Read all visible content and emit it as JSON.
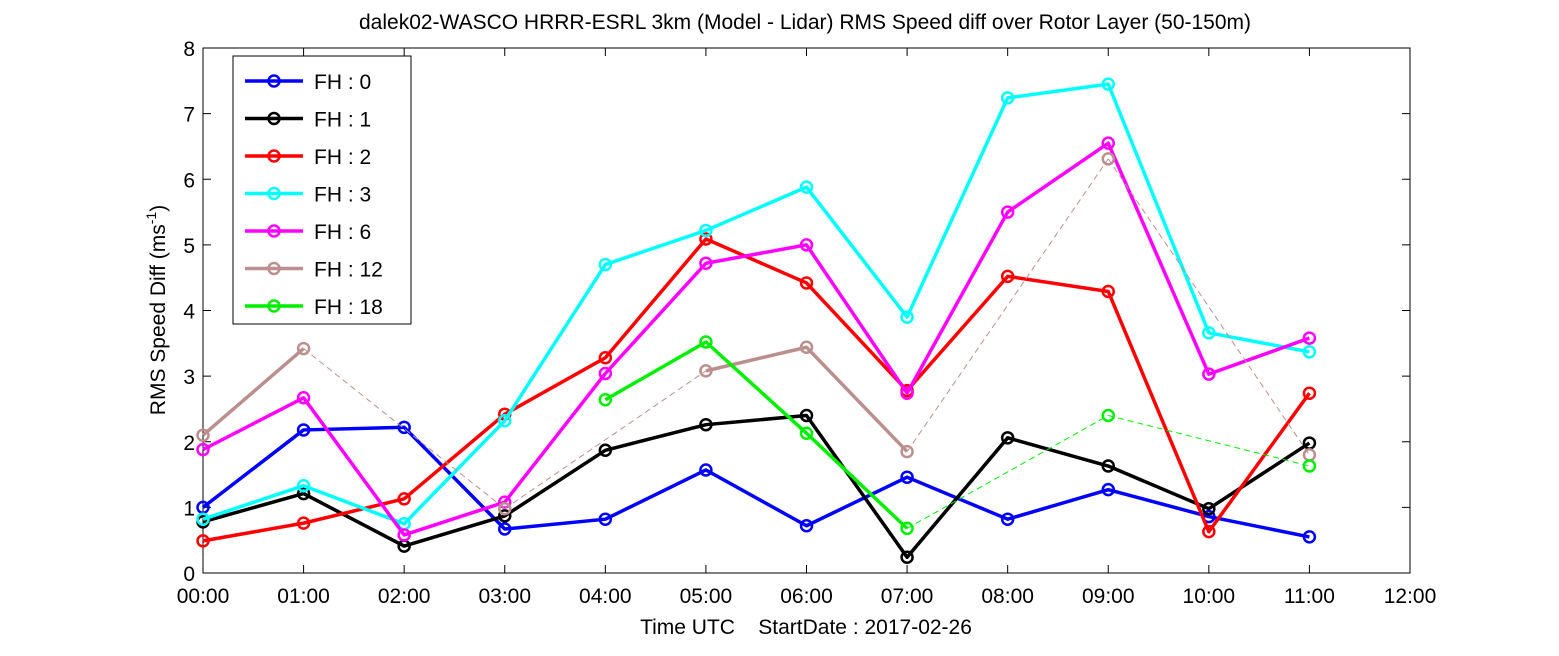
{
  "chart_data": {
    "type": "line",
    "title": "dalek02-WASCO HRRR-ESRL 3km (Model - Lidar) RMS Speed diff over Rotor Layer (50-150m)",
    "xlabel": "Time UTC    StartDate : 2017-02-26",
    "ylabel_base": "RMS Speed Diff (ms",
    "ylabel_sup": "-1",
    "ylabel_end": ")",
    "xlim": [
      "00:00",
      "12:00"
    ],
    "ylim": [
      0,
      8
    ],
    "x_ticks": [
      "00:00",
      "01:00",
      "02:00",
      "03:00",
      "04:00",
      "05:00",
      "06:00",
      "07:00",
      "08:00",
      "09:00",
      "10:00",
      "11:00",
      "12:00"
    ],
    "y_ticks": [
      "0",
      "1",
      "2",
      "3",
      "4",
      "5",
      "6",
      "7",
      "8"
    ],
    "legend_position": "top-left",
    "series": [
      {
        "name": "FH : 0",
        "color": "#0000ff",
        "values": [
          1.0,
          2.18,
          2.22,
          0.67,
          0.82,
          1.57,
          0.72,
          1.46,
          0.82,
          1.27,
          0.86,
          0.55
        ]
      },
      {
        "name": "FH : 1",
        "color": "#000000",
        "values": [
          0.78,
          1.21,
          0.41,
          0.87,
          1.87,
          2.26,
          2.4,
          0.24,
          2.06,
          1.63,
          0.98,
          1.98
        ]
      },
      {
        "name": "FH : 2",
        "color": "#ff0000",
        "values": [
          0.49,
          0.76,
          1.13,
          2.42,
          3.28,
          5.09,
          4.42,
          2.78,
          4.52,
          4.29,
          0.63,
          2.74
        ]
      },
      {
        "name": "FH : 3",
        "color": "#00ffff",
        "values": [
          0.82,
          1.33,
          0.75,
          2.32,
          4.7,
          5.22,
          5.88,
          3.9,
          7.24,
          7.45,
          3.66,
          3.37
        ]
      },
      {
        "name": "FH : 6",
        "color": "#ff00ff",
        "values": [
          1.88,
          2.67,
          0.58,
          1.08,
          3.04,
          4.72,
          5.0,
          2.74,
          5.5,
          6.55,
          3.03,
          3.58
        ]
      },
      {
        "name": "FH : 12",
        "color": "#bc8f8f",
        "values": [
          2.1,
          3.42,
          null,
          0.98,
          null,
          3.08,
          3.44,
          1.85,
          null,
          6.31,
          null,
          1.8
        ]
      },
      {
        "name": "FH : 18",
        "color": "#00ee00",
        "values": [
          null,
          null,
          null,
          null,
          2.64,
          3.52,
          2.13,
          0.68,
          null,
          2.4,
          null,
          1.63
        ]
      }
    ]
  }
}
